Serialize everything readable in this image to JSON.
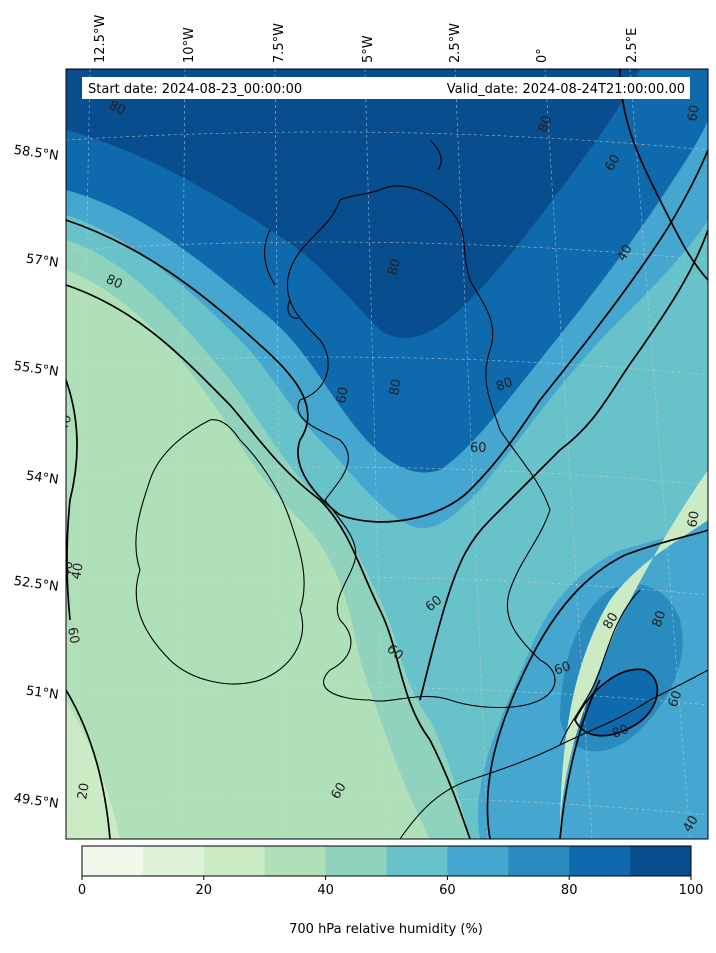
{
  "header": {
    "start_date": "Start date: 2024-08-23_00:00:00",
    "valid_date": "Valid_date: 2024-08-24T21:00:00.00"
  },
  "lon_labels": [
    "12.5°W",
    "10°W",
    "7.5°W",
    "5°W",
    "2.5°W",
    "0°",
    "2.5°E"
  ],
  "lat_labels": [
    "58.5°N",
    "57°N",
    "55.5°N",
    "54°N",
    "52.5°N",
    "51°N",
    "49.5°N"
  ],
  "contour_labels": [
    "80",
    "80",
    "80",
    "60",
    "40",
    "80",
    "60",
    "80",
    "60",
    "60",
    "40",
    "60",
    "40",
    "60",
    "80",
    "60",
    "80",
    "80",
    "60",
    "60",
    "60",
    "80",
    "40",
    "20",
    "40",
    "60"
  ],
  "colorbar": {
    "title": "700 hPa relative humidity (%)",
    "ticks": [
      "0",
      "20",
      "40",
      "60",
      "80",
      "100"
    ],
    "levels": [
      0,
      10,
      20,
      30,
      40,
      50,
      60,
      70,
      80,
      90,
      100
    ],
    "colors": [
      "#f1f9ec",
      "#def2d9",
      "#cbebc5",
      "#afe0b8",
      "#8fd3bf",
      "#68c2c9",
      "#45a7cf",
      "#2a8bbe",
      "#0f6aad",
      "#084d8e"
    ]
  },
  "map": {
    "variable": "700 hPa relative humidity",
    "units": "%",
    "contour_levels": [
      20,
      40,
      60,
      80
    ],
    "projection": "lambert-conformal"
  }
}
